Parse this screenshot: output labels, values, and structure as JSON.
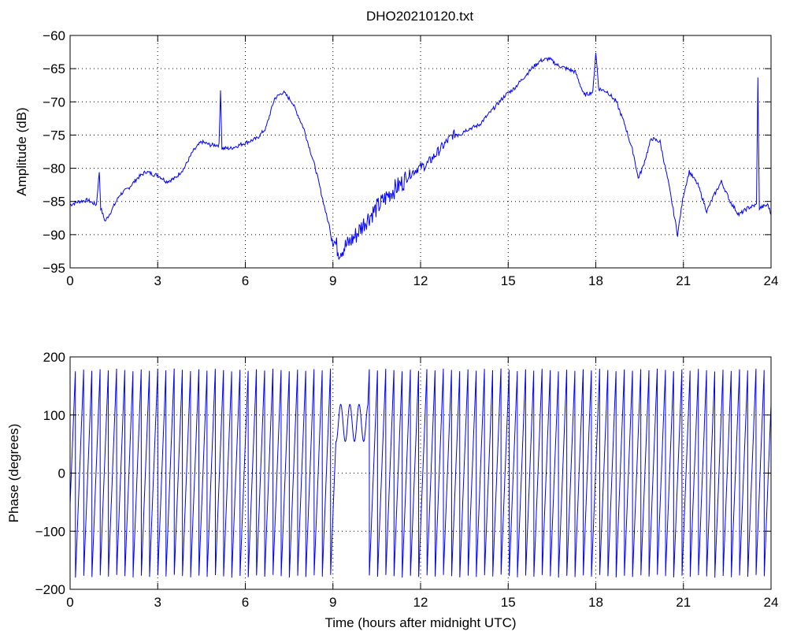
{
  "chart_data": [
    {
      "type": "line",
      "title": "DHO20210120.txt",
      "xlabel": "",
      "ylabel": "Amplitude (dB)",
      "xlim": [
        0,
        24
      ],
      "ylim": [
        -95,
        -60
      ],
      "xticks": [
        0,
        3,
        6,
        9,
        12,
        15,
        18,
        21,
        24
      ],
      "yticks": [
        -95,
        -90,
        -85,
        -80,
        -75,
        -70,
        -65,
        -60
      ],
      "grid": true,
      "series": [
        {
          "color": "#0000ff",
          "x": [
            0,
            0.3,
            0.6,
            0.9,
            1.0,
            1.05,
            1.2,
            1.4,
            1.7,
            2.0,
            2.3,
            2.6,
            2.9,
            3.0,
            3.3,
            3.6,
            3.9,
            4.2,
            4.5,
            4.8,
            5.1,
            5.15,
            5.2,
            5.5,
            5.8,
            6.1,
            6.4,
            6.7,
            7.0,
            7.3,
            7.6,
            8.0,
            8.4,
            8.8,
            9.0,
            9.2,
            9.5,
            9.8,
            10.1,
            10.4,
            10.7,
            11.0,
            11.3,
            11.6,
            11.9,
            12.2,
            12.5,
            12.8,
            13.1,
            13.4,
            13.7,
            14.0,
            14.3,
            14.6,
            14.9,
            15.2,
            15.5,
            15.8,
            16.1,
            16.4,
            16.7,
            17.0,
            17.3,
            17.6,
            17.9,
            18.0,
            18.1,
            18.4,
            18.7,
            19.0,
            19.3,
            19.45,
            19.6,
            19.9,
            20.2,
            20.5,
            20.8,
            21.0,
            21.2,
            21.5,
            21.8,
            22.0,
            22.3,
            22.6,
            22.9,
            23.2,
            23.5,
            23.55,
            23.6,
            23.9,
            24.0
          ],
          "values": [
            -85.5,
            -85.0,
            -84.8,
            -85.5,
            -80.5,
            -86.0,
            -88.0,
            -86.5,
            -84.0,
            -83.0,
            -81.5,
            -80.5,
            -81.0,
            -81.0,
            -82.0,
            -81.5,
            -80.0,
            -77.5,
            -76.0,
            -76.5,
            -76.5,
            -68.0,
            -77.0,
            -77.0,
            -76.5,
            -76.0,
            -75.5,
            -74.0,
            -69.5,
            -68.5,
            -70.0,
            -74.0,
            -80.0,
            -87.5,
            -90.5,
            -92.5,
            -91.5,
            -90.0,
            -88.0,
            -86.5,
            -85.0,
            -83.5,
            -82.5,
            -81.0,
            -80.0,
            -79.5,
            -78.0,
            -76.5,
            -75.0,
            -74.5,
            -74.0,
            -73.5,
            -72.0,
            -70.5,
            -69.0,
            -68.0,
            -66.5,
            -65.0,
            -63.8,
            -63.5,
            -64.5,
            -65.0,
            -65.5,
            -69.0,
            -68.5,
            -62.5,
            -68.0,
            -68.5,
            -70.0,
            -73.5,
            -78.0,
            -81.5,
            -80.0,
            -75.5,
            -76.0,
            -82.5,
            -90.0,
            -84.0,
            -80.5,
            -82.5,
            -86.5,
            -84.5,
            -82.0,
            -85.0,
            -87.0,
            -86.0,
            -85.5,
            -66.5,
            -86.0,
            -85.5,
            -87.0
          ]
        }
      ]
    },
    {
      "type": "line",
      "title": "",
      "xlabel": "Time (hours after midnight UTC)",
      "ylabel": "Phase (degrees)",
      "xlim": [
        0,
        24
      ],
      "ylim": [
        -200,
        200
      ],
      "xticks": [
        0,
        3,
        6,
        9,
        12,
        15,
        18,
        21,
        24
      ],
      "yticks": [
        -200,
        -100,
        0,
        100,
        200
      ],
      "grid": true,
      "phase_wrap": {
        "cycles_per_hour": 3.55,
        "range": [
          -180,
          180
        ],
        "disturbed_interval": [
          9.1,
          10.2
        ]
      },
      "series": [
        {
          "color": "#0000ff"
        }
      ]
    }
  ]
}
